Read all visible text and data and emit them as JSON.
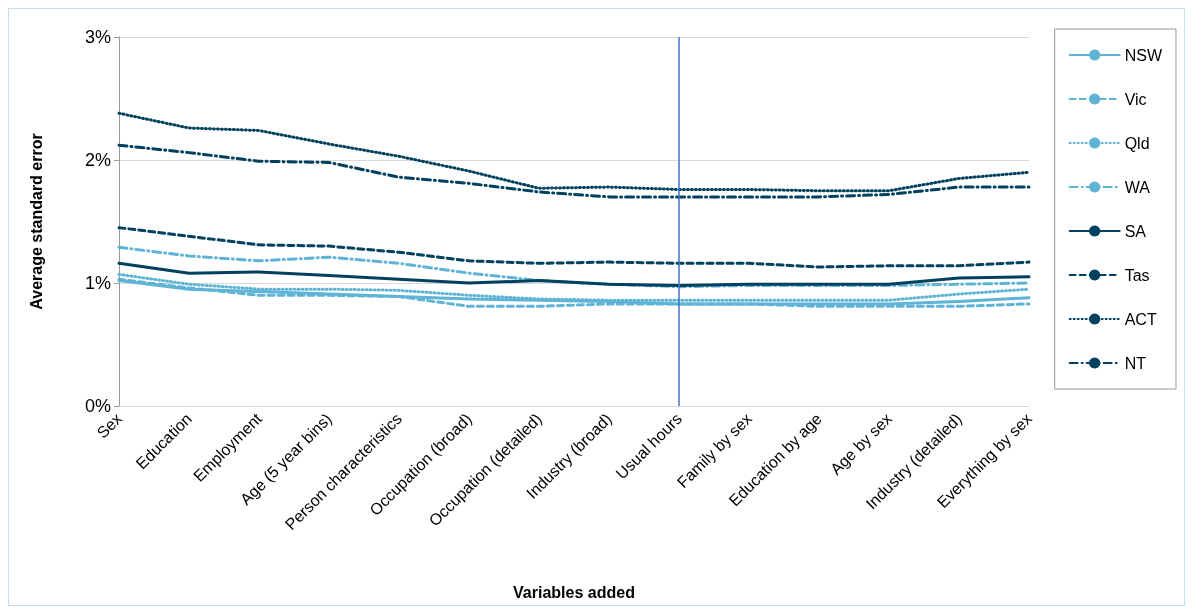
{
  "chart_data": {
    "type": "line",
    "xlabel": "Variables added",
    "ylabel": "Average standard error",
    "categories": [
      "Sex",
      "Education",
      "Employment",
      "Age (5 year bins)",
      "Person characteristics",
      "Occupation (broad)",
      "Occupation (detailed)",
      "Industry (broad)",
      "Usual hours",
      "Family by sex",
      "Education by age",
      "Age by sex",
      "Industry (detailed)",
      "Everything by sex"
    ],
    "series": [
      {
        "name": "NSW",
        "color": "#5fb4d6",
        "line_style": "solid",
        "values": [
          1.02,
          0.95,
          0.93,
          0.91,
          0.89,
          0.87,
          0.86,
          0.85,
          0.83,
          0.83,
          0.83,
          0.83,
          0.85,
          0.88
        ]
      },
      {
        "name": "Vic",
        "color": "#5fb4d6",
        "line_style": "dashed",
        "values": [
          1.03,
          0.96,
          0.9,
          0.9,
          0.89,
          0.81,
          0.81,
          0.83,
          0.83,
          0.83,
          0.81,
          0.81,
          0.81,
          0.83
        ]
      },
      {
        "name": "Qld",
        "color": "#5fb4d6",
        "line_style": "dotted",
        "values": [
          1.07,
          0.99,
          0.95,
          0.95,
          0.94,
          0.9,
          0.87,
          0.86,
          0.86,
          0.86,
          0.86,
          0.86,
          0.91,
          0.95
        ]
      },
      {
        "name": "WA",
        "color": "#5fb4d6",
        "line_style": "dashdot",
        "values": [
          1.29,
          1.22,
          1.18,
          1.21,
          1.16,
          1.08,
          1.02,
          0.99,
          0.97,
          0.98,
          0.98,
          0.98,
          0.99,
          1.0
        ]
      },
      {
        "name": "SA",
        "color": "#00415f",
        "line_style": "solid",
        "values": [
          1.16,
          1.08,
          1.09,
          1.06,
          1.03,
          1.0,
          1.02,
          0.99,
          0.98,
          0.99,
          0.99,
          0.99,
          1.04,
          1.05
        ]
      },
      {
        "name": "Tas",
        "color": "#00415f",
        "line_style": "dashed",
        "values": [
          1.45,
          1.38,
          1.31,
          1.3,
          1.25,
          1.18,
          1.16,
          1.17,
          1.16,
          1.16,
          1.13,
          1.14,
          1.14,
          1.17
        ]
      },
      {
        "name": "ACT",
        "color": "#00415f",
        "line_style": "dotted",
        "values": [
          2.38,
          2.26,
          2.24,
          2.13,
          2.03,
          1.91,
          1.77,
          1.78,
          1.76,
          1.76,
          1.75,
          1.75,
          1.85,
          1.9
        ]
      },
      {
        "name": "NT",
        "color": "#00415f",
        "line_style": "dashdot",
        "values": [
          2.12,
          2.06,
          1.99,
          1.98,
          1.86,
          1.81,
          1.74,
          1.7,
          1.7,
          1.7,
          1.7,
          1.72,
          1.78,
          1.78
        ]
      }
    ],
    "ylim": [
      0,
      3
    ],
    "yticks": [
      {
        "value": 0,
        "label": "0%"
      },
      {
        "value": 1,
        "label": "1%"
      },
      {
        "value": 2,
        "label": "2%"
      },
      {
        "value": 3,
        "label": "3%"
      }
    ],
    "ref_lines": [
      {
        "axis": "x",
        "value": "Usual hours",
        "color": "#4472c4"
      }
    ],
    "grid": "y",
    "legend": "right",
    "marker": "none"
  }
}
